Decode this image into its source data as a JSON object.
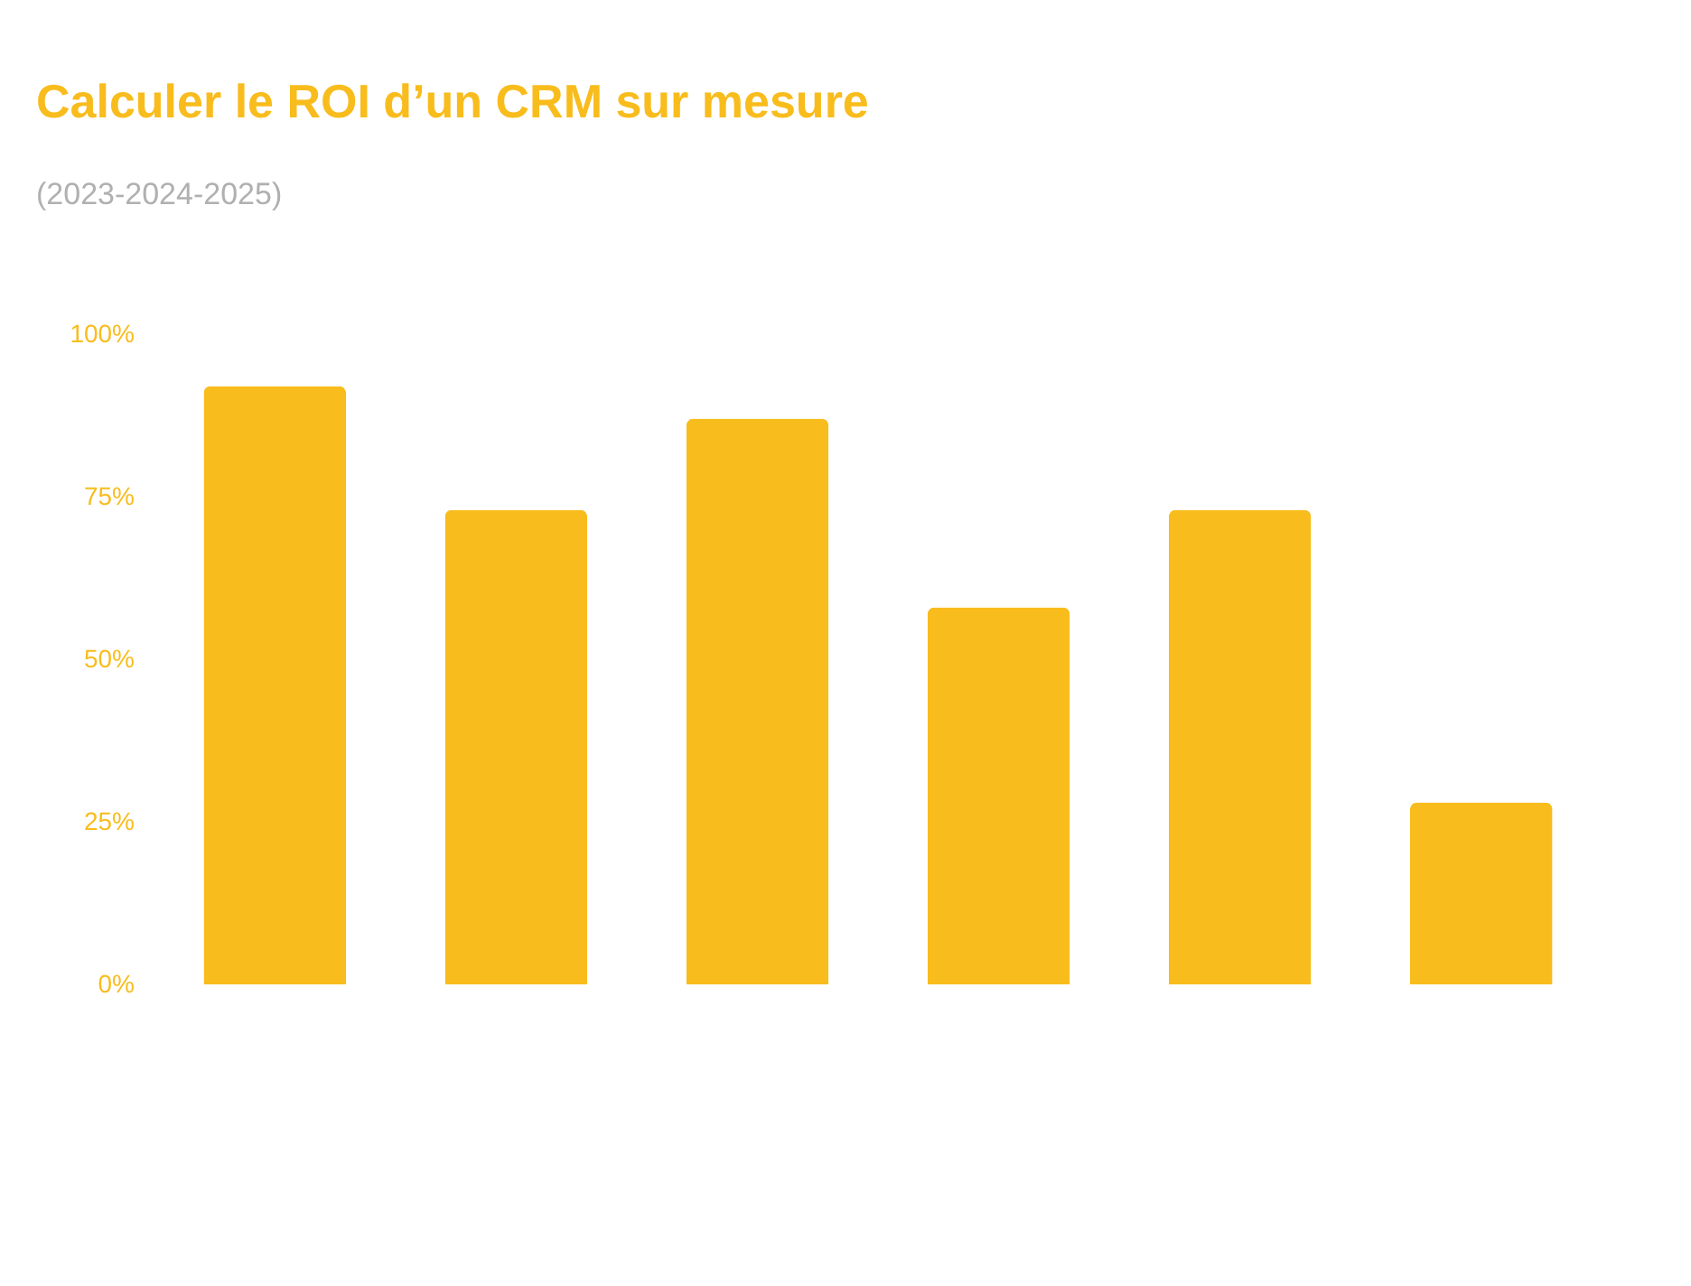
{
  "chart_data": {
    "type": "bar",
    "title": "Calculer le ROI d’un CRM sur mesure",
    "subtitle": "(2023-2024-2025)",
    "categories": [
      null,
      null,
      null,
      null,
      null,
      null
    ],
    "values": [
      92,
      73,
      87,
      58,
      73,
      28
    ],
    "color": "#f8bc1c",
    "ylim": [
      0,
      100
    ],
    "yticks": [
      {
        "value": 0,
        "label": "0%"
      },
      {
        "value": 25,
        "label": "25%"
      },
      {
        "value": 50,
        "label": "50%"
      },
      {
        "value": 75,
        "label": "75%"
      },
      {
        "value": 100,
        "label": "100%"
      }
    ]
  }
}
